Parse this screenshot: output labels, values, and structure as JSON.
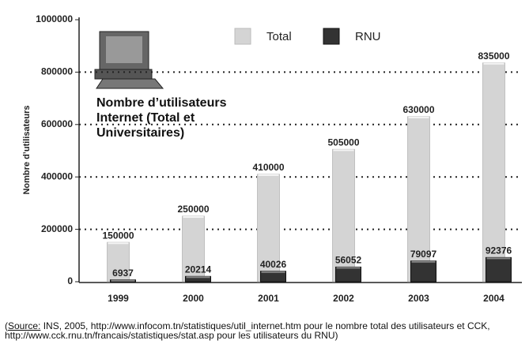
{
  "chart_data": {
    "type": "bar",
    "title": "Nombre d’utilisateurs Internet (Total et Universitaires)",
    "y_label": "Nombre d’utilisateurs",
    "categories": [
      "1999",
      "2000",
      "2001",
      "2002",
      "2003",
      "2004"
    ],
    "series": [
      {
        "name": "Total",
        "color": "#d4d4d4",
        "values": [
          150000,
          250000,
          410000,
          505000,
          630000,
          835000
        ]
      },
      {
        "name": "RNU",
        "color": "#333333",
        "values": [
          6937,
          20214,
          40026,
          56052,
          79097,
          92376
        ]
      }
    ],
    "ylim": [
      0,
      1000000
    ],
    "yticks": [
      0,
      200000,
      400000,
      600000,
      800000,
      1000000
    ],
    "grid": true,
    "source_label": "Source:",
    "source_text": " INS, 2005, http://www.infocom.tn/statistiques/util_internet.htm pour le nombre total des utilisateurs et CCK, http://www.cck.rnu.tn/francais/statistiques/stat.asp pour les utilisateurs du RNU)"
  }
}
